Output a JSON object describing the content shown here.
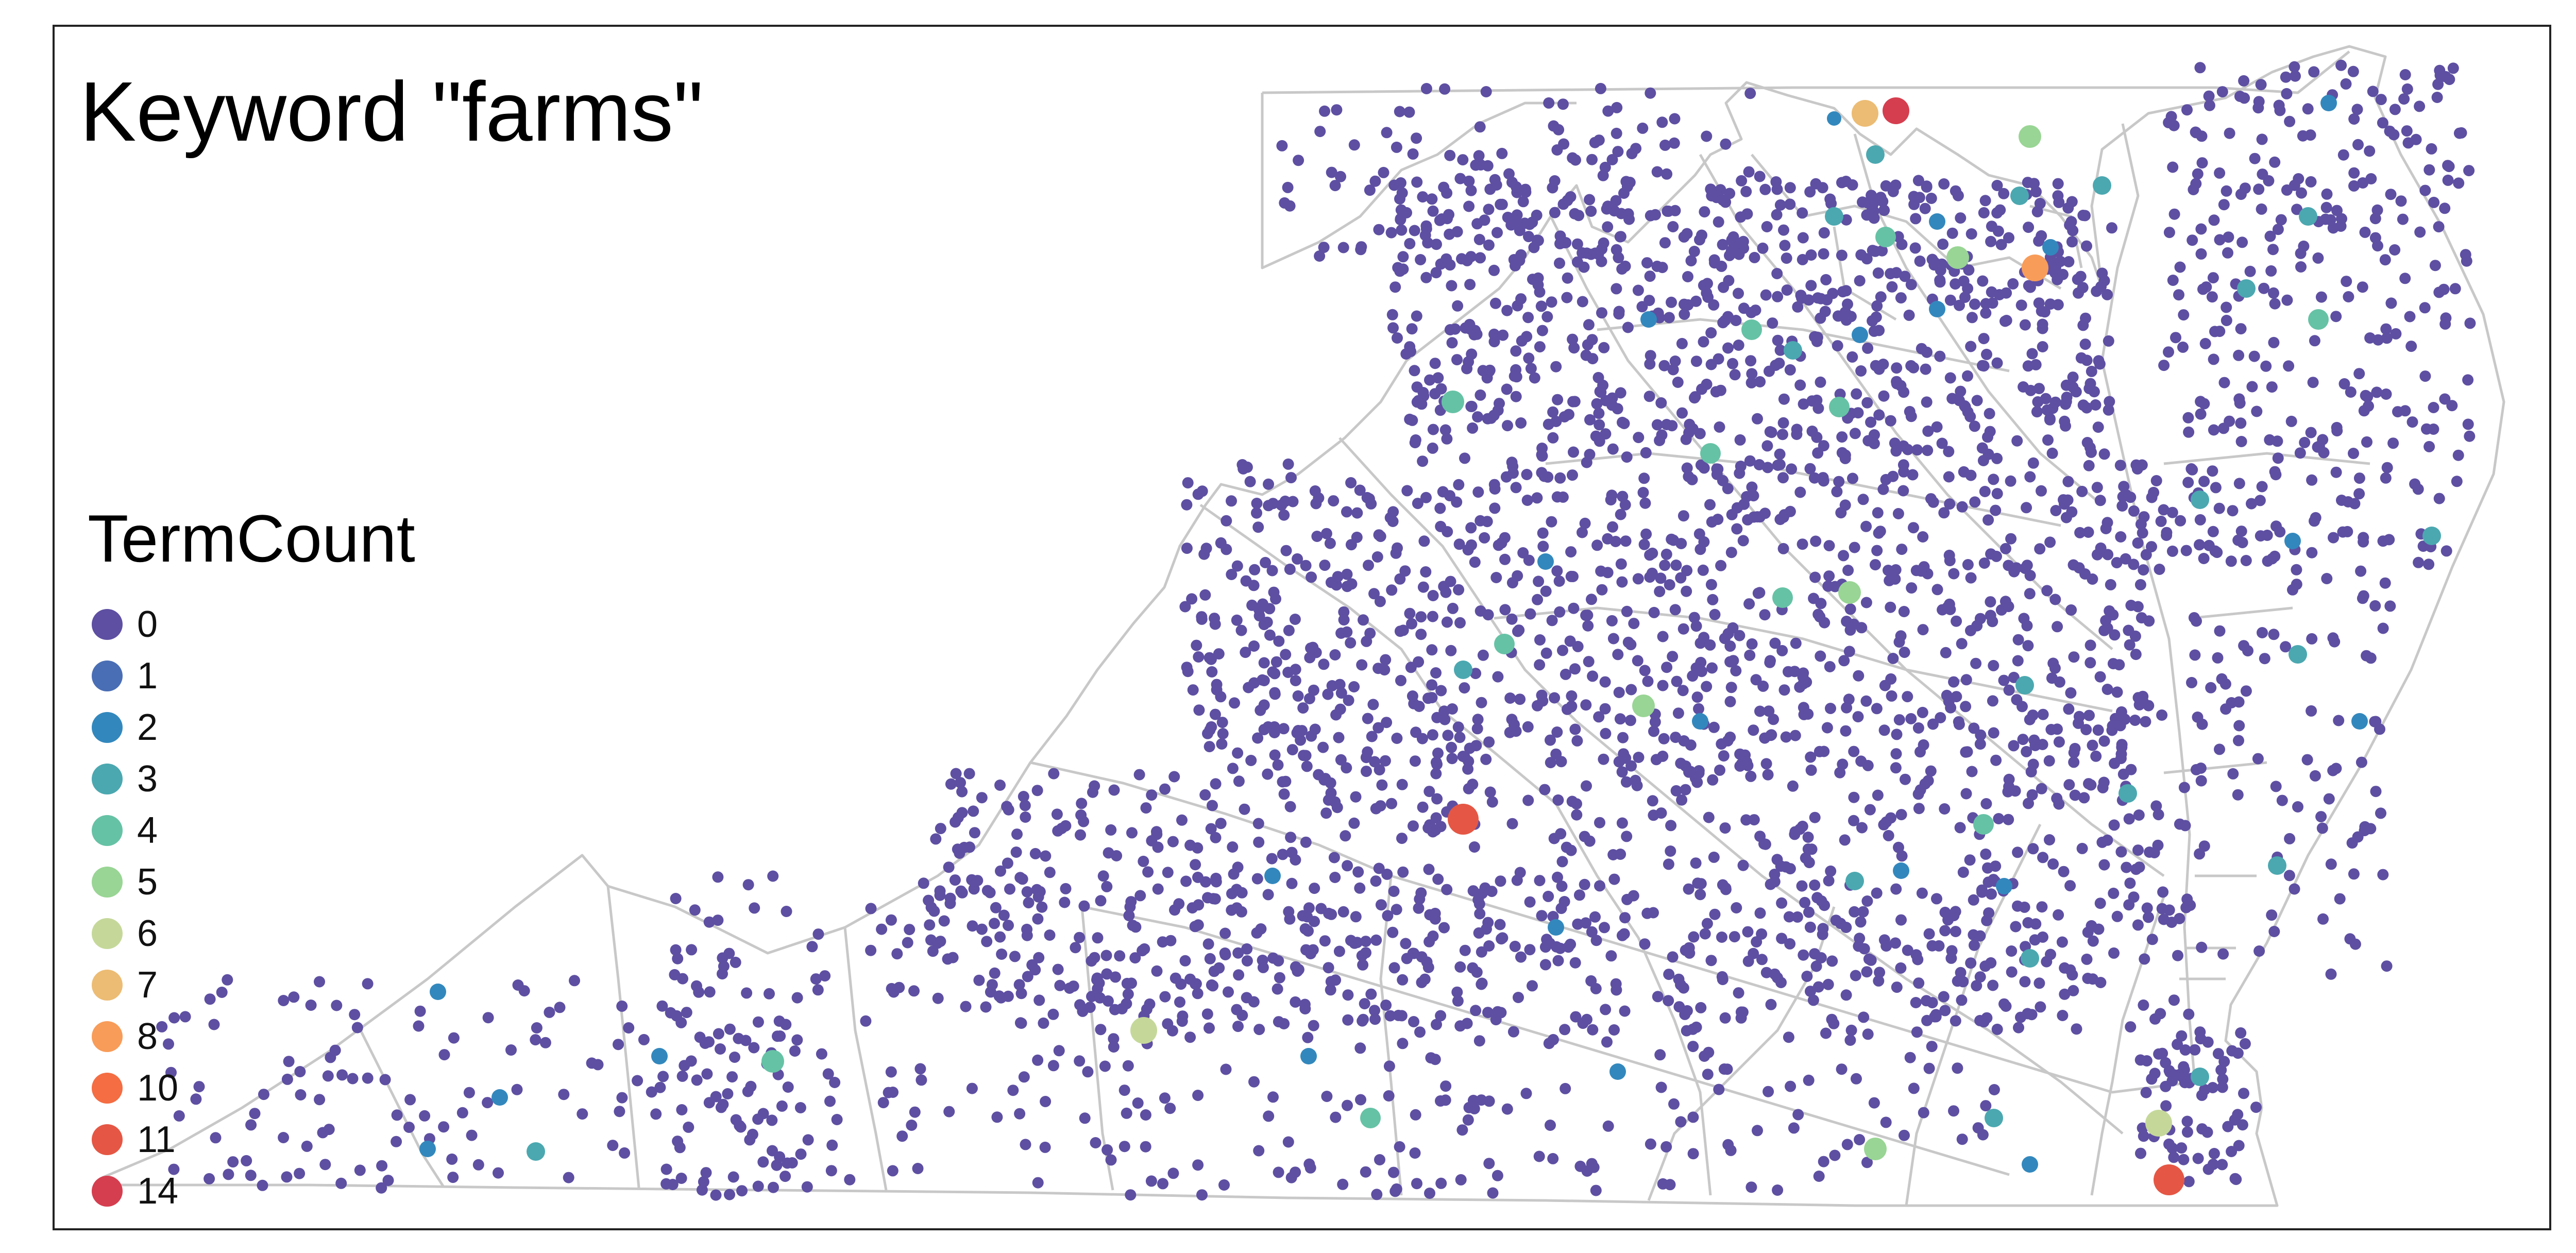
{
  "title": "Keyword \"farms\"",
  "legend": {
    "title": "TermCount",
    "items": [
      {
        "label": "0",
        "color": "#5e4fa2"
      },
      {
        "label": "1",
        "color": "#4a6eb5"
      },
      {
        "label": "2",
        "color": "#3288bd"
      },
      {
        "label": "3",
        "color": "#4ba8b0"
      },
      {
        "label": "4",
        "color": "#66c2a5"
      },
      {
        "label": "5",
        "color": "#99d594"
      },
      {
        "label": "6",
        "color": "#c5d89a"
      },
      {
        "label": "7",
        "color": "#ecbc74"
      },
      {
        "label": "8",
        "color": "#f89c59"
      },
      {
        "label": "10",
        "color": "#f46d43"
      },
      {
        "label": "11",
        "color": "#e55744"
      },
      {
        "label": "14",
        "color": "#d53e4f"
      }
    ]
  },
  "colors": {
    "boundary": "#c8c8c8",
    "frame": "#222222"
  }
}
